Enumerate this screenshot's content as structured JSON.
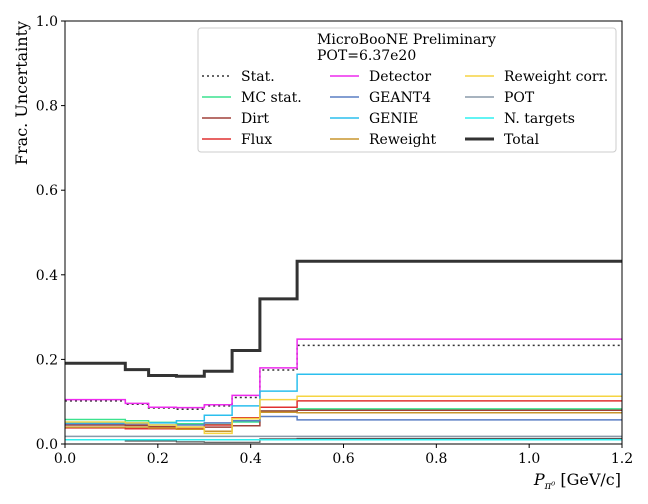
{
  "chart_data": {
    "type": "line",
    "drawstyle": "steps-post",
    "xlabel": "P_{π⁰} [GeV/c]",
    "xlabel_main": "P",
    "xlabel_sub": "π⁰",
    "xlabel_unit": " [GeV/c]",
    "ylabel": "Frac. Uncertainty",
    "xlim": [
      0.0,
      1.2
    ],
    "ylim": [
      0.0,
      1.0
    ],
    "xticks": [
      "0.0",
      "0.2",
      "0.4",
      "0.6",
      "0.8",
      "1.0",
      "1.2"
    ],
    "yticks": [
      "0.0",
      "0.2",
      "0.4",
      "0.6",
      "0.8",
      "1.0"
    ],
    "grid": false,
    "legend_position": "top-right",
    "legend_title": [
      "MicroBooNE Preliminary",
      "POT=6.37e20"
    ],
    "bin_edges": [
      0.0,
      0.13,
      0.18,
      0.24,
      0.3,
      0.36,
      0.42,
      0.5,
      1.2
    ],
    "series": [
      {
        "name": "Stat.",
        "color": "#333333",
        "style": "dotted",
        "width": 1.5,
        "values": [
          0.102,
          0.094,
          0.085,
          0.082,
          0.09,
          0.11,
          0.175,
          0.233
        ]
      },
      {
        "name": "MC stat.",
        "color": "#3be28f",
        "style": "solid",
        "width": 1.5,
        "values": [
          0.058,
          0.055,
          0.051,
          0.048,
          0.046,
          0.052,
          0.078,
          0.083
        ]
      },
      {
        "name": "Dirt",
        "color": "#a0403a",
        "style": "solid",
        "width": 1.5,
        "values": [
          0.045,
          0.044,
          0.041,
          0.04,
          0.04,
          0.043,
          0.078,
          0.08
        ]
      },
      {
        "name": "Flux",
        "color": "#e03030",
        "style": "solid",
        "width": 1.5,
        "values": [
          0.038,
          0.036,
          0.036,
          0.036,
          0.045,
          0.062,
          0.087,
          0.102
        ]
      },
      {
        "name": "Detector",
        "color": "#ee2aee",
        "style": "solid",
        "width": 1.5,
        "values": [
          0.105,
          0.096,
          0.087,
          0.086,
          0.093,
          0.115,
          0.18,
          0.248
        ]
      },
      {
        "name": "GEANT4",
        "color": "#5a7ec4",
        "style": "solid",
        "width": 1.5,
        "values": [
          0.048,
          0.048,
          0.045,
          0.045,
          0.05,
          0.055,
          0.065,
          0.057
        ]
      },
      {
        "name": "GENIE",
        "color": "#2bbfee",
        "style": "solid",
        "width": 1.5,
        "values": [
          0.05,
          0.05,
          0.05,
          0.055,
          0.068,
          0.09,
          0.125,
          0.165
        ]
      },
      {
        "name": "Reweight",
        "color": "#c8962e",
        "style": "solid",
        "width": 1.5,
        "values": [
          0.04,
          0.04,
          0.038,
          0.035,
          0.03,
          0.06,
          0.075,
          0.074
        ]
      },
      {
        "name": "Reweight corr.",
        "color": "#f5d442",
        "style": "solid",
        "width": 1.5,
        "values": [
          0.052,
          0.05,
          0.045,
          0.04,
          0.025,
          0.06,
          0.105,
          0.113
        ]
      },
      {
        "name": "POT",
        "color": "#8a9aaa",
        "style": "solid",
        "width": 1.5,
        "values": [
          0.018,
          0.018,
          0.018,
          0.018,
          0.018,
          0.018,
          0.018,
          0.018
        ]
      },
      {
        "name": "N. targets",
        "color": "#2ef0f0",
        "style": "solid",
        "width": 1.5,
        "values": [
          0.01,
          0.01,
          0.01,
          0.01,
          0.01,
          0.01,
          0.01,
          0.01
        ]
      },
      {
        "name": "Total",
        "color": "#333333",
        "style": "solid",
        "width": 3,
        "values": [
          0.191,
          0.176,
          0.162,
          0.16,
          0.172,
          0.221,
          0.343,
          0.432
        ]
      }
    ],
    "extra_lines": [
      {
        "color": "#555555",
        "width": 1.2,
        "values": [
          0.01,
          0.007,
          0.007,
          0.005,
          0.004,
          0.004,
          0.012,
          0.013
        ]
      }
    ]
  }
}
